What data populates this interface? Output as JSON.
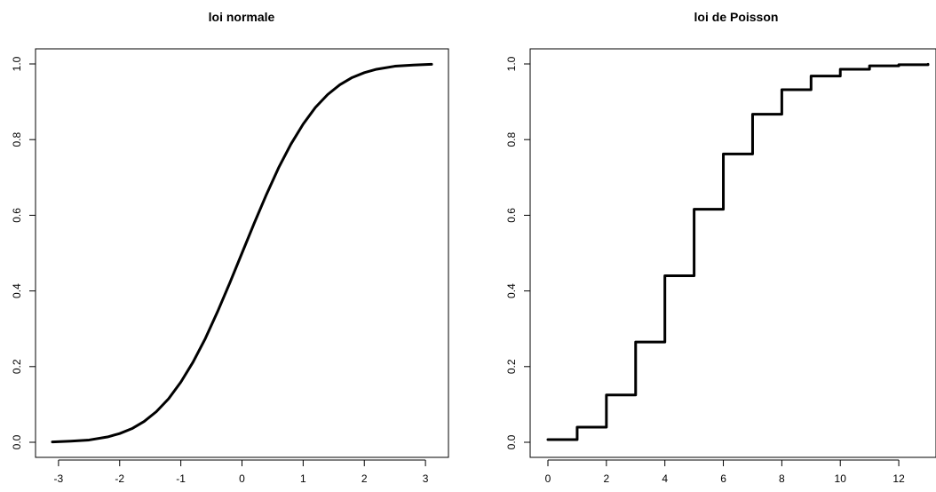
{
  "chart_data": [
    {
      "type": "line",
      "title": "loi normale",
      "xlabel": "",
      "ylabel": "",
      "xlim": [
        -3.1,
        3.1
      ],
      "ylim": [
        0,
        1
      ],
      "grid": false,
      "x_ticks": [
        "-3",
        "-2",
        "-1",
        "0",
        "1",
        "2",
        "3"
      ],
      "y_ticks": [
        "0.0",
        "0.2",
        "0.4",
        "0.6",
        "0.8",
        "1.0"
      ],
      "series": [
        {
          "x": [
            -3.1,
            -2.8,
            -2.5,
            -2.2,
            -2.0,
            -1.8,
            -1.6,
            -1.4,
            -1.2,
            -1.0,
            -0.8,
            -0.6,
            -0.4,
            -0.2,
            0.0,
            0.2,
            0.4,
            0.6,
            0.8,
            1.0,
            1.2,
            1.4,
            1.6,
            1.8,
            2.0,
            2.2,
            2.5,
            2.8,
            3.1
          ],
          "values": [
            0.001,
            0.003,
            0.006,
            0.014,
            0.023,
            0.036,
            0.055,
            0.081,
            0.115,
            0.159,
            0.212,
            0.274,
            0.345,
            0.421,
            0.5,
            0.579,
            0.655,
            0.726,
            0.788,
            0.841,
            0.885,
            0.919,
            0.945,
            0.964,
            0.977,
            0.986,
            0.994,
            0.997,
            0.999
          ]
        }
      ]
    },
    {
      "type": "line",
      "title": "loi de Poisson",
      "xlabel": "",
      "ylabel": "",
      "xlim": [
        0,
        13
      ],
      "ylim": [
        0,
        1
      ],
      "grid": false,
      "x_ticks": [
        "0",
        "2",
        "4",
        "6",
        "8",
        "10",
        "12"
      ],
      "y_ticks": [
        "0.0",
        "0.2",
        "0.4",
        "0.6",
        "0.8",
        "1.0"
      ],
      "series": [
        {
          "step": true,
          "x": [
            0,
            1,
            2,
            3,
            4,
            5,
            6,
            7,
            8,
            9,
            10,
            11,
            12,
            13
          ],
          "values": [
            0.007,
            0.04,
            0.125,
            0.265,
            0.44,
            0.616,
            0.762,
            0.867,
            0.932,
            0.968,
            0.986,
            0.995,
            0.998,
            0.999
          ]
        }
      ]
    }
  ]
}
